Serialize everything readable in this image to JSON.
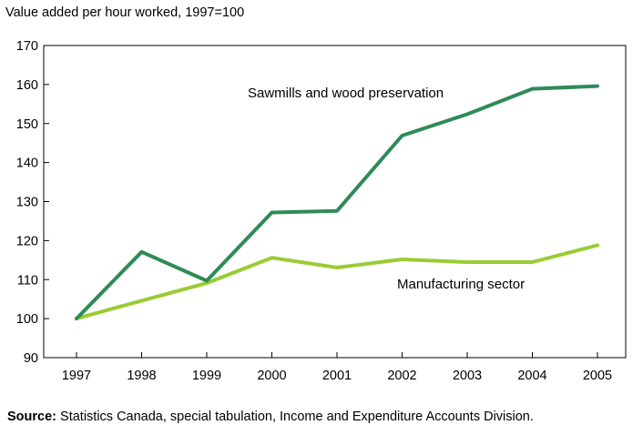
{
  "chart_data": {
    "type": "line",
    "title": "",
    "xlabel": "",
    "ylabel": "Value added per hour worked, 1997=100",
    "x": [
      "1997",
      "1998",
      "1999",
      "2000",
      "2001",
      "2002",
      "2003",
      "2004",
      "2005"
    ],
    "ylim": [
      90,
      170
    ],
    "yticks": [
      90,
      100,
      110,
      120,
      130,
      140,
      150,
      160,
      170
    ],
    "grid": false,
    "legend": "inline labels",
    "series": [
      {
        "name": "Sawmills and wood preservation",
        "color": "#2e8b57",
        "values": [
          100,
          117.1,
          109.7,
          127.2,
          127.6,
          146.9,
          152.4,
          158.9,
          159.6
        ]
      },
      {
        "name": "Manufacturing sector",
        "color": "#99cc33",
        "values": [
          100,
          104.6,
          109.1,
          115.6,
          113.1,
          115.2,
          114.5,
          114.5,
          118.8
        ]
      }
    ]
  },
  "source_label": "Source:",
  "source_text": " Statistics Canada, special tabulation, Income and Expenditure Accounts Division."
}
